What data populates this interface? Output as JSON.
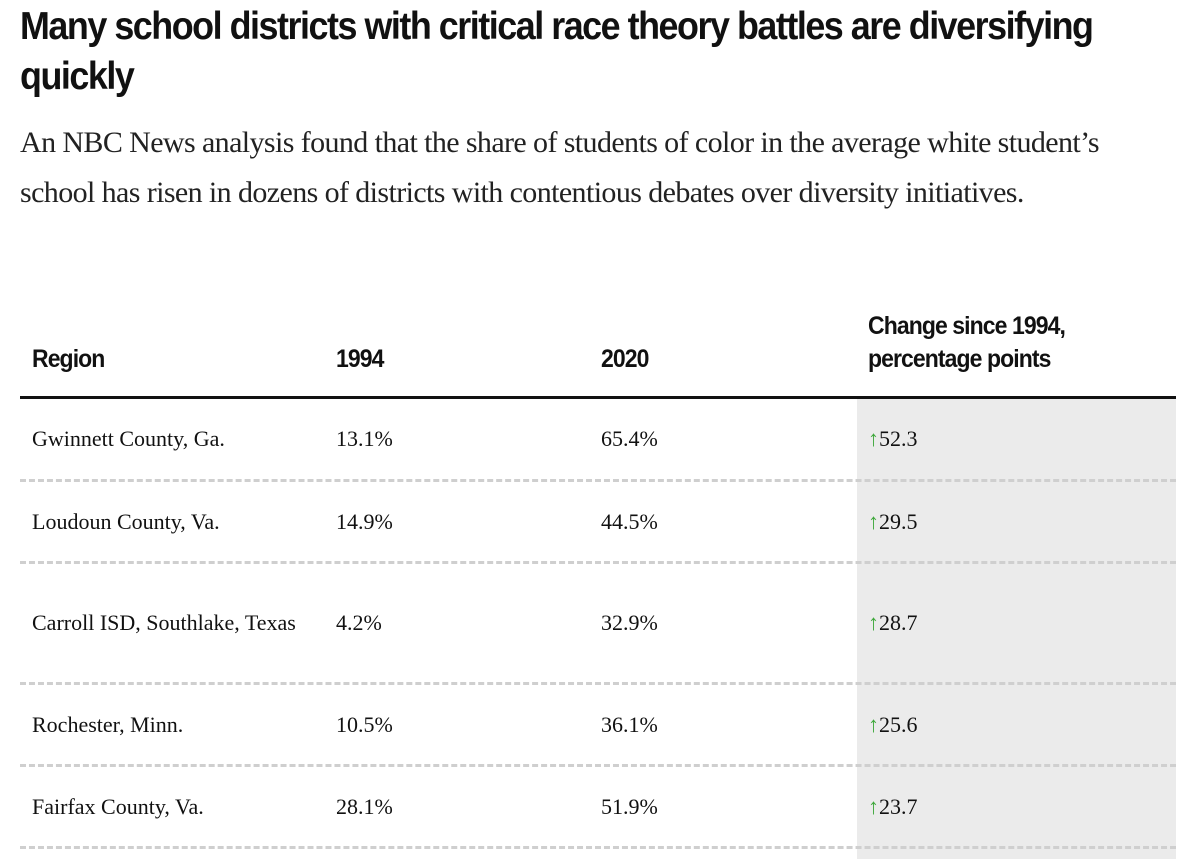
{
  "title": "Many school districts with critical race theory battles are diversifying quickly",
  "subtitle": "An NBC News analysis found that the share of students of color in the average white student’s school has risen in dozens of districts with contentious debates over diversity initiatives.",
  "colors": {
    "arrow": "#3ea83b",
    "shade": "#ebebeb"
  },
  "table": {
    "headers": [
      "Region",
      "1994",
      "2020",
      "Change since 1994, percentage points"
    ],
    "rows": [
      {
        "region": "Gwinnett County, Ga.",
        "y1994": "13.1%",
        "y2020": "65.4%",
        "arrow": "↑",
        "change": "52.3"
      },
      {
        "region": "Loudoun County, Va.",
        "y1994": "14.9%",
        "y2020": "44.5%",
        "arrow": "↑",
        "change": "29.5"
      },
      {
        "region": "Carroll ISD, Southlake, Texas",
        "y1994": "4.2%",
        "y2020": "32.9%",
        "arrow": "↑",
        "change": "28.7"
      },
      {
        "region": "Rochester, Minn.",
        "y1994": "10.5%",
        "y2020": "36.1%",
        "arrow": "↑",
        "change": "25.6"
      },
      {
        "region": "Fairfax County, Va.",
        "y1994": "28.1%",
        "y2020": "51.9%",
        "arrow": "↑",
        "change": "23.7"
      }
    ]
  }
}
